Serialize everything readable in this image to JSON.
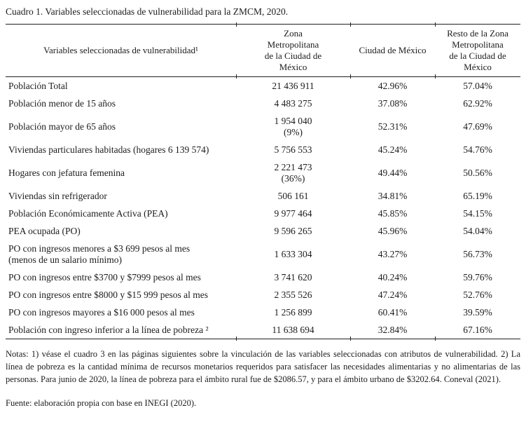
{
  "page": {
    "title": "Cuadro 1. Variables seleccionadas de vulnerabilidad para la ZMCM, 2020."
  },
  "table": {
    "columns": [
      "Variables seleccionadas de vulnerabilidad¹",
      "Zona\nMetropolitana\nde la Ciudad de\nMéxico",
      "Ciudad de México",
      "Resto de la Zona\nMetropolitana\nde la Ciudad de\nMéxico"
    ],
    "rows": [
      {
        "variable": "Población Total",
        "zmcm": "21 436 911",
        "cdmx": "42.96%",
        "resto": "57.04%"
      },
      {
        "variable": "Población menor de 15 años",
        "zmcm": "4 483 275",
        "cdmx": "37.08%",
        "resto": "62.92%"
      },
      {
        "variable": "Población mayor de 65 años",
        "zmcm": "1 954 040\n(9%)",
        "cdmx": "52.31%",
        "resto": "47.69%"
      },
      {
        "variable": "Viviendas particulares habitadas (hogares 6 139 574)",
        "zmcm": "5 756 553",
        "cdmx": "45.24%",
        "resto": "54.76%"
      },
      {
        "variable": "Hogares con jefatura femenina",
        "zmcm": "2 221 473\n(36%)",
        "cdmx": "49.44%",
        "resto": "50.56%"
      },
      {
        "variable": "Viviendas sin refrigerador",
        "zmcm": "506 161",
        "cdmx": "34.81%",
        "resto": "65.19%"
      },
      {
        "variable": "Población Económicamente Activa (PEA)",
        "zmcm": "9 977 464",
        "cdmx": "45.85%",
        "resto": "54.15%"
      },
      {
        "variable": "PEA ocupada (PO)",
        "zmcm": "9 596 265",
        "cdmx": "45.96%",
        "resto": "54.04%"
      },
      {
        "variable": "PO con ingresos menores a $3 699 pesos al mes\n(menos de un salario mínimo)",
        "zmcm": "1 633 304",
        "cdmx": "43.27%",
        "resto": "56.73%"
      },
      {
        "variable": "PO con ingresos entre $3700 y $7999 pesos al mes",
        "zmcm": "3 741 620",
        "cdmx": "40.24%",
        "resto": "59.76%"
      },
      {
        "variable": "PO con ingresos entre $8000 y $15 999 pesos al mes",
        "zmcm": "2 355 526",
        "cdmx": "47.24%",
        "resto": "52.76%"
      },
      {
        "variable": "PO con ingresos mayores a $16 000 pesos al mes",
        "zmcm": "1 256 899",
        "cdmx": "60.41%",
        "resto": "39.59%"
      },
      {
        "variable": "Población con ingreso inferior a la línea de pobreza ²",
        "zmcm": "11 638 694",
        "cdmx": "32.84%",
        "resto": "67.16%"
      }
    ]
  },
  "notes": "Notas: 1) véase el cuadro 3 en las páginas siguientes sobre la vinculación de las variables seleccionadas con atributos de vulnerabilidad. 2) La línea de pobreza es la cantidad mínima de recursos monetarios requeridos para satisfacer las necesidades alimentarias y no alimentarias de las personas. Para junio de 2020, la línea de pobreza para el ámbito rural fue de $2086.57, y para el ámbito urbano de $3202.64. Coneval (2021).",
  "source": "Fuente: elaboración propia con base en INEGI (2020)."
}
